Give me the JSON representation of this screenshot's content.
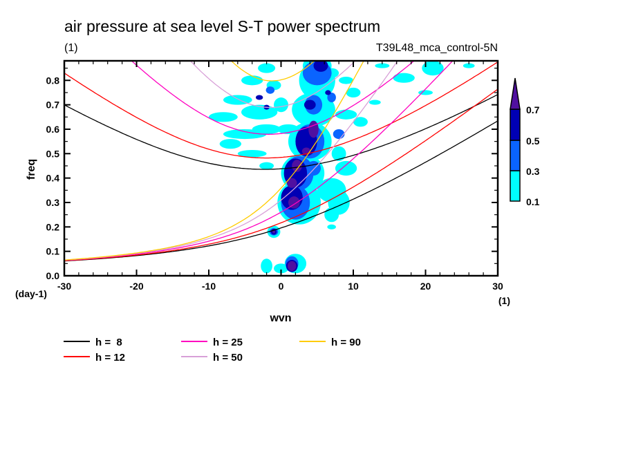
{
  "chart_data": {
    "type": "heatmap",
    "title": "air pressure at sea level S-T power spectrum",
    "subtitle_left": "(1)",
    "subtitle_right": "T39L48_mca_control-5N",
    "xlabel": "wvn",
    "ylabel": "freq",
    "x_unit": "(1)",
    "y_unit": "(day-1)",
    "xlim": [
      -30,
      30
    ],
    "ylim": [
      0.0,
      0.88
    ],
    "x_ticks": [
      -30,
      -20,
      -10,
      0,
      10,
      20,
      30
    ],
    "x_tick_labels": [
      "-30",
      "-20",
      "-10",
      "0",
      "10",
      "20",
      "30"
    ],
    "y_ticks": [
      0.0,
      0.1,
      0.2,
      0.3,
      0.4,
      0.5,
      0.6,
      0.7,
      0.8
    ],
    "y_tick_labels": [
      "0.0",
      "0.1",
      "0.2",
      "0.3",
      "0.4",
      "0.5",
      "0.6",
      "0.7",
      "0.8"
    ],
    "colorbar": {
      "levels": [
        0.1,
        0.3,
        0.5,
        0.7
      ],
      "labels": [
        "0.1",
        "0.3",
        "0.5",
        "0.7"
      ],
      "colors": [
        "#00ffff",
        "#0a64ff",
        "#0000b4",
        "#5010a0"
      ],
      "extend": "max",
      "placement": "right"
    },
    "shaded_regions": [
      {
        "level": 0.1,
        "x": 0,
        "y": 0.03,
        "rx": 1,
        "ry": 0.02
      },
      {
        "level": 0.1,
        "x": 2,
        "y": 0.05,
        "rx": 1.5,
        "ry": 0.04
      },
      {
        "level": 0.1,
        "x": -2,
        "y": 0.04,
        "rx": 0.8,
        "ry": 0.03
      },
      {
        "level": 0.1,
        "x": 2.5,
        "y": 0.3,
        "rx": 3,
        "ry": 0.09
      },
      {
        "level": 0.1,
        "x": 3,
        "y": 0.42,
        "rx": 3,
        "ry": 0.08
      },
      {
        "level": 0.1,
        "x": 4,
        "y": 0.55,
        "rx": 3,
        "ry": 0.08
      },
      {
        "level": 0.1,
        "x": 4.5,
        "y": 0.68,
        "rx": 3,
        "ry": 0.07
      },
      {
        "level": 0.1,
        "x": 5,
        "y": 0.8,
        "rx": 2.5,
        "ry": 0.08
      },
      {
        "level": 0.1,
        "x": 5,
        "y": 0.86,
        "rx": 2,
        "ry": 0.04
      },
      {
        "level": 0.1,
        "x": 7,
        "y": 0.35,
        "rx": 2,
        "ry": 0.05
      },
      {
        "level": 0.1,
        "x": 8,
        "y": 0.3,
        "rx": 1.5,
        "ry": 0.05
      },
      {
        "level": 0.1,
        "x": 7,
        "y": 0.25,
        "rx": 1,
        "ry": 0.03
      },
      {
        "level": 0.1,
        "x": -6,
        "y": 0.72,
        "rx": 2,
        "ry": 0.02
      },
      {
        "level": 0.1,
        "x": -4,
        "y": 0.8,
        "rx": 1.5,
        "ry": 0.02
      },
      {
        "level": 0.1,
        "x": -3,
        "y": 0.67,
        "rx": 2.5,
        "ry": 0.03
      },
      {
        "level": 0.1,
        "x": -8,
        "y": 0.65,
        "rx": 2,
        "ry": 0.02
      },
      {
        "level": 0.1,
        "x": -2,
        "y": 0.6,
        "rx": 2,
        "ry": 0.02
      },
      {
        "level": 0.1,
        "x": -5,
        "y": 0.58,
        "rx": 3,
        "ry": 0.02
      },
      {
        "level": 0.1,
        "x": -4,
        "y": 0.5,
        "rx": 2,
        "ry": 0.015
      },
      {
        "level": 0.1,
        "x": -7,
        "y": 0.54,
        "rx": 1.5,
        "ry": 0.02
      },
      {
        "level": 0.1,
        "x": 0,
        "y": 0.7,
        "rx": 1,
        "ry": 0.03
      },
      {
        "level": 0.1,
        "x": -1,
        "y": 0.78,
        "rx": 1,
        "ry": 0.02
      },
      {
        "level": 0.1,
        "x": -2,
        "y": 0.85,
        "rx": 1.2,
        "ry": 0.02
      },
      {
        "level": 0.1,
        "x": 1,
        "y": 0.6,
        "rx": 1.5,
        "ry": 0.02
      },
      {
        "level": 0.1,
        "x": 7,
        "y": 0.83,
        "rx": 1,
        "ry": 0.02
      },
      {
        "level": 0.1,
        "x": 9,
        "y": 0.8,
        "rx": 1,
        "ry": 0.015
      },
      {
        "level": 0.1,
        "x": 10,
        "y": 0.75,
        "rx": 1,
        "ry": 0.02
      },
      {
        "level": 0.1,
        "x": 11,
        "y": 0.63,
        "rx": 1,
        "ry": 0.02
      },
      {
        "level": 0.1,
        "x": 9,
        "y": 0.66,
        "rx": 1.5,
        "ry": 0.02
      },
      {
        "level": 0.1,
        "x": 14,
        "y": 0.86,
        "rx": 1,
        "ry": 0.01
      },
      {
        "level": 0.1,
        "x": 13,
        "y": 0.71,
        "rx": 0.8,
        "ry": 0.01
      },
      {
        "level": 0.1,
        "x": 8,
        "y": 0.5,
        "rx": 1,
        "ry": 0.03
      },
      {
        "level": 0.1,
        "x": 9,
        "y": 0.44,
        "rx": 1.5,
        "ry": 0.03
      },
      {
        "level": 0.1,
        "x": -2,
        "y": 0.45,
        "rx": 1,
        "ry": 0.015
      },
      {
        "level": 0.1,
        "x": 7,
        "y": 0.2,
        "rx": 0.6,
        "ry": 0.01
      },
      {
        "level": 0.1,
        "x": 17,
        "y": 0.81,
        "rx": 1.5,
        "ry": 0.02
      },
      {
        "level": 0.1,
        "x": 21,
        "y": 0.85,
        "rx": 1.5,
        "ry": 0.03
      },
      {
        "level": 0.1,
        "x": 20,
        "y": 0.75,
        "rx": 1,
        "ry": 0.01
      },
      {
        "level": 0.1,
        "x": 26,
        "y": 0.86,
        "rx": 0.8,
        "ry": 0.01
      },
      {
        "level": 0.1,
        "x": -1,
        "y": 0.18,
        "rx": 0.9,
        "ry": 0.025
      },
      {
        "level": 0.3,
        "x": 2,
        "y": 0.3,
        "rx": 2,
        "ry": 0.07
      },
      {
        "level": 0.3,
        "x": 2.5,
        "y": 0.42,
        "rx": 2,
        "ry": 0.07
      },
      {
        "level": 0.3,
        "x": 4,
        "y": 0.55,
        "rx": 2,
        "ry": 0.07
      },
      {
        "level": 0.3,
        "x": 4.5,
        "y": 0.7,
        "rx": 1.2,
        "ry": 0.04
      },
      {
        "level": 0.3,
        "x": 5,
        "y": 0.83,
        "rx": 2,
        "ry": 0.05
      },
      {
        "level": 0.3,
        "x": -1,
        "y": 0.18,
        "rx": 0.6,
        "ry": 0.015
      },
      {
        "level": 0.3,
        "x": 1.5,
        "y": 0.05,
        "rx": 0.9,
        "ry": 0.03
      },
      {
        "level": 0.3,
        "x": -1.5,
        "y": 0.76,
        "rx": 0.6,
        "ry": 0.015
      },
      {
        "level": 0.3,
        "x": 7,
        "y": 0.73,
        "rx": 0.6,
        "ry": 0.02
      },
      {
        "level": 0.3,
        "x": 8,
        "y": 0.58,
        "rx": 0.8,
        "ry": 0.02
      },
      {
        "level": 0.3,
        "x": 4.5,
        "y": 0.44,
        "rx": 1,
        "ry": 0.03
      },
      {
        "level": 0.5,
        "x": 1.5,
        "y": 0.32,
        "rx": 1.5,
        "ry": 0.05
      },
      {
        "level": 0.5,
        "x": 2,
        "y": 0.42,
        "rx": 1.6,
        "ry": 0.06
      },
      {
        "level": 0.5,
        "x": 3.5,
        "y": 0.55,
        "rx": 1.5,
        "ry": 0.06
      },
      {
        "level": 0.5,
        "x": 4,
        "y": 0.7,
        "rx": 0.8,
        "ry": 0.02
      },
      {
        "level": 0.5,
        "x": 5.5,
        "y": 0.86,
        "rx": 1,
        "ry": 0.025
      },
      {
        "level": 0.5,
        "x": 1.5,
        "y": 0.04,
        "rx": 0.8,
        "ry": 0.025
      },
      {
        "level": 0.5,
        "x": -1,
        "y": 0.18,
        "rx": 0.4,
        "ry": 0.012
      },
      {
        "level": 0.5,
        "x": -3,
        "y": 0.73,
        "rx": 0.5,
        "ry": 0.01
      },
      {
        "level": 0.5,
        "x": -2,
        "y": 0.69,
        "rx": 0.4,
        "ry": 0.01
      },
      {
        "level": 0.5,
        "x": 6.5,
        "y": 0.75,
        "rx": 0.4,
        "ry": 0.01
      },
      {
        "level": 0.7,
        "x": 1.5,
        "y": 0.04,
        "rx": 0.6,
        "ry": 0.02
      },
      {
        "level": 0.7,
        "x": 1.8,
        "y": 0.3,
        "rx": 0.8,
        "ry": 0.025
      },
      {
        "level": 0.7,
        "x": 1.5,
        "y": 0.38,
        "rx": 0.7,
        "ry": 0.02
      },
      {
        "level": 0.7,
        "x": 2.2,
        "y": 0.45,
        "rx": 0.7,
        "ry": 0.025
      },
      {
        "level": 0.7,
        "x": 3.5,
        "y": 0.51,
        "rx": 0.6,
        "ry": 0.015
      },
      {
        "level": 0.7,
        "x": 4.5,
        "y": 0.6,
        "rx": 0.7,
        "ry": 0.035
      },
      {
        "level": 0.7,
        "x": -1,
        "y": 0.18,
        "rx": 0.2,
        "ry": 0.006
      }
    ],
    "series": [
      {
        "name": "h =  8",
        "h": 8,
        "color": "#000000"
      },
      {
        "name": "h = 12",
        "h": 12,
        "color": "#ff0000"
      },
      {
        "name": "h = 25",
        "h": 25,
        "color": "#ff00c0"
      },
      {
        "name": "h = 50",
        "h": 50,
        "color": "#d8a0d8"
      },
      {
        "name": "h = 90",
        "h": 90,
        "color": "#ffcc00"
      }
    ],
    "legend_placement": "bottom",
    "grid": false
  }
}
